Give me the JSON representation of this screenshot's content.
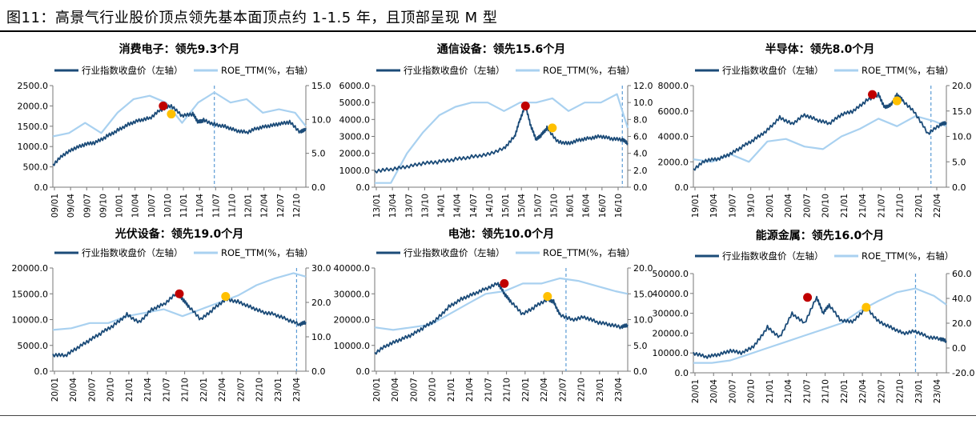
{
  "figure_title": "图11：高景气行业股价顶点领先基本面顶点约 1-1.5 年，且顶部呈现 M 型",
  "legend": {
    "price": "行业指数收盘价（左轴）",
    "roe": "ROE_TTM(%，右轴）"
  },
  "colors": {
    "price": "#1b4b78",
    "roe": "#a9d1f0",
    "peak_price": "#c00000",
    "peak_roe": "#ffc000",
    "vline": "#5b9bd5"
  },
  "chart_data": [
    {
      "type": "line",
      "title": "消费电子：领先9.3个月",
      "x_ticks": [
        "09/01",
        "09/04",
        "09/07",
        "09/10",
        "10/01",
        "10/04",
        "10/07",
        "10/10",
        "11/01",
        "11/04",
        "11/07",
        "11/10",
        "12/01",
        "12/04",
        "12/07",
        "12/10"
      ],
      "x_range": [
        0,
        47
      ],
      "y_left": {
        "range": [
          0,
          2500
        ],
        "ticks": [
          "0.0",
          "500.0",
          "1000.0",
          "1500.0",
          "2000.0",
          "2500.0"
        ]
      },
      "y_right": {
        "range": [
          0,
          15
        ],
        "ticks": [
          "0.0",
          "5.0",
          "10.0",
          "15.0"
        ]
      },
      "series": [
        {
          "name": "行业指数收盘价（左轴）",
          "x": [
            0,
            2,
            4,
            6,
            8,
            10,
            12,
            14,
            16,
            18,
            20,
            22,
            24,
            26,
            27,
            28,
            30,
            32,
            34,
            36,
            38,
            40,
            42,
            44,
            46,
            47
          ],
          "values": [
            550,
            800,
            950,
            1050,
            1100,
            1250,
            1400,
            1550,
            1650,
            1700,
            1900,
            2000,
            1750,
            1800,
            1600,
            1650,
            1550,
            1500,
            1400,
            1350,
            1450,
            1500,
            1550,
            1600,
            1350,
            1450
          ]
        },
        {
          "name": "ROE_TTM(%，右轴）",
          "x": [
            0,
            3,
            6,
            9,
            12,
            15,
            18,
            21,
            24,
            27,
            30,
            33,
            36,
            39,
            42,
            45,
            47
          ],
          "values": [
            7.5,
            8.0,
            9.5,
            8.0,
            11.0,
            13.0,
            13.5,
            12.5,
            9.5,
            12.5,
            14.0,
            12.5,
            13.0,
            11.0,
            11.5,
            11.0,
            9.0
          ]
        }
      ],
      "peak_price": {
        "x": 20.5,
        "y": 2000
      },
      "peak_roe": {
        "x": 22,
        "y": 1800
      },
      "vline_x": 30
    },
    {
      "type": "line",
      "title": "通信设备：领先15.6个月",
      "x_ticks": [
        "13/01",
        "13/04",
        "13/07",
        "13/10",
        "14/01",
        "14/04",
        "14/07",
        "14/10",
        "15/01",
        "15/04",
        "15/07",
        "15/10",
        "16/01",
        "16/04",
        "16/07",
        "16/10"
      ],
      "x_range": [
        0,
        47
      ],
      "y_left": {
        "range": [
          0,
          6000
        ],
        "ticks": [
          "0.0",
          "1000.0",
          "2000.0",
          "3000.0",
          "4000.0",
          "5000.0",
          "6000.0"
        ]
      },
      "y_right": {
        "range": [
          0,
          12
        ],
        "ticks": [
          "0.0",
          "2.0",
          "4.0",
          "6.0",
          "8.0",
          "10.0",
          "12.0"
        ]
      },
      "series": [
        {
          "name": "行业指数收盘价（左轴）",
          "x": [
            0,
            3,
            6,
            9,
            12,
            15,
            18,
            21,
            24,
            26,
            27,
            28,
            29,
            30,
            31,
            32,
            34,
            36,
            38,
            40,
            42,
            44,
            46,
            47
          ],
          "values": [
            950,
            1050,
            1200,
            1400,
            1500,
            1650,
            1800,
            1950,
            2300,
            3000,
            4000,
            4800,
            3600,
            2800,
            3100,
            3500,
            2700,
            2600,
            2800,
            2900,
            3000,
            2850,
            2800,
            2600
          ]
        },
        {
          "name": "ROE_TTM(%，右轴）",
          "x": [
            0,
            3,
            6,
            9,
            12,
            15,
            18,
            21,
            24,
            27,
            30,
            33,
            36,
            39,
            42,
            45,
            47
          ],
          "values": [
            0.5,
            0.5,
            4.0,
            6.5,
            8.5,
            9.5,
            10.0,
            10.0,
            9.0,
            10.0,
            10.0,
            10.5,
            9.0,
            10.0,
            10.0,
            11.0,
            7.0
          ]
        }
      ],
      "peak_price": {
        "x": 28,
        "y": 4800
      },
      "peak_roe": {
        "x": 33,
        "y": 3500
      },
      "vline_x": 46
    },
    {
      "type": "line",
      "title": "半导体：领先8.0个月",
      "x_ticks": [
        "19/01",
        "19/04",
        "19/07",
        "19/10",
        "20/01",
        "20/04",
        "20/07",
        "20/10",
        "21/01",
        "21/04",
        "21/07",
        "21/10",
        "22/01",
        "22/04"
      ],
      "x_range": [
        0,
        41
      ],
      "y_left": {
        "range": [
          0,
          8000
        ],
        "ticks": [
          "0.0",
          "2000.0",
          "4000.0",
          "6000.0",
          "8000.0"
        ]
      },
      "y_right": {
        "range": [
          0,
          20
        ],
        "ticks": [
          "0.0",
          "5.0",
          "10.0",
          "15.0",
          "20.0"
        ]
      },
      "series": [
        {
          "name": "行业指数收盘价（左轴）",
          "x": [
            0,
            2,
            4,
            6,
            8,
            10,
            12,
            14,
            16,
            18,
            20,
            22,
            24,
            26,
            28,
            30,
            31,
            32,
            33,
            34,
            36,
            38,
            40,
            41
          ],
          "values": [
            1400,
            2100,
            2200,
            2600,
            3200,
            3800,
            4500,
            5500,
            5000,
            5700,
            5300,
            5000,
            5700,
            6000,
            6800,
            7300,
            6300,
            6500,
            7300,
            6800,
            5800,
            4200,
            4900,
            5100
          ]
        },
        {
          "name": "ROE_TTM(%，右轴）",
          "x": [
            0,
            3,
            6,
            9,
            12,
            15,
            18,
            21,
            24,
            27,
            30,
            33,
            36,
            39,
            41
          ],
          "values": [
            5.5,
            5.0,
            6.5,
            5.0,
            9.0,
            9.5,
            8.0,
            7.5,
            10.0,
            11.5,
            13.5,
            12.0,
            14.0,
            13.0,
            12.0
          ]
        }
      ],
      "peak_price": {
        "x": 29,
        "y": 7300
      },
      "peak_roe": {
        "x": 33,
        "y": 6800
      },
      "vline_x": 38.5
    },
    {
      "type": "line",
      "title": "光伏设备：领先19.0个月",
      "x_ticks": [
        "20/01",
        "20/04",
        "20/07",
        "20/10",
        "21/01",
        "21/04",
        "21/07",
        "21/10",
        "22/01",
        "22/04",
        "22/07",
        "22/10",
        "23/01",
        "23/04"
      ],
      "x_range": [
        0,
        41
      ],
      "y_left": {
        "range": [
          0,
          20000
        ],
        "ticks": [
          "0.0",
          "5000.0",
          "10000.0",
          "15000.0",
          "20000.0"
        ]
      },
      "y_right": {
        "range": [
          0,
          30
        ],
        "ticks": [
          "0.0",
          "10.0",
          "20.0",
          "30.0"
        ]
      },
      "series": [
        {
          "name": "行业指数收盘价（左轴）",
          "x": [
            0,
            2,
            4,
            6,
            8,
            10,
            12,
            14,
            16,
            18,
            20,
            21,
            22,
            24,
            26,
            28,
            30,
            32,
            34,
            36,
            38,
            40,
            41
          ],
          "values": [
            3200,
            3000,
            4500,
            6000,
            7500,
            9000,
            11000,
            9500,
            12000,
            13000,
            15000,
            14000,
            12500,
            10000,
            12000,
            14000,
            13500,
            12500,
            11500,
            11000,
            10000,
            9000,
            9500
          ]
        },
        {
          "name": "ROE_TTM(%，右轴）",
          "x": [
            0,
            3,
            6,
            9,
            12,
            15,
            18,
            21,
            24,
            27,
            30,
            33,
            36,
            39,
            41
          ],
          "values": [
            12.0,
            12.5,
            14.0,
            14.0,
            16.0,
            17.0,
            18.0,
            16.0,
            18.0,
            20.0,
            22.0,
            25.0,
            27.0,
            28.5,
            27.5
          ]
        }
      ],
      "peak_price": {
        "x": 20.5,
        "y": 15000
      },
      "peak_roe": {
        "x": 28,
        "y": 14500
      },
      "vline_x": 39.5
    },
    {
      "type": "line",
      "title": "电池：领先10.0个月",
      "x_ticks": [
        "20/01",
        "20/04",
        "20/07",
        "20/10",
        "21/01",
        "21/04",
        "21/07",
        "21/10",
        "22/01",
        "22/04",
        "22/07",
        "22/10",
        "23/01",
        "23/04"
      ],
      "x_range": [
        0,
        41
      ],
      "y_left": {
        "range": [
          0,
          40000
        ],
        "ticks": [
          "0.0",
          "10000.0",
          "20000.0",
          "30000.0",
          "40000.0"
        ]
      },
      "y_right": {
        "range": [
          0,
          20
        ],
        "ticks": [
          "0.0",
          "5.0",
          "10.0",
          "15.0",
          "20.0"
        ]
      },
      "series": [
        {
          "name": "行业指数收盘价（左轴）",
          "x": [
            0,
            2,
            4,
            6,
            8,
            10,
            12,
            14,
            16,
            18,
            20,
            21,
            22,
            24,
            26,
            28,
            29,
            30,
            32,
            34,
            36,
            38,
            40,
            41
          ],
          "values": [
            7000,
            10000,
            12000,
            14000,
            17000,
            20000,
            25000,
            28000,
            30000,
            32000,
            34000,
            30000,
            27000,
            22000,
            25000,
            28000,
            27000,
            22000,
            20000,
            21000,
            19000,
            18000,
            17000,
            18000
          ]
        },
        {
          "name": "ROE_TTM(%，右轴）",
          "x": [
            0,
            3,
            6,
            9,
            12,
            15,
            18,
            21,
            24,
            27,
            30,
            33,
            36,
            39,
            41
          ],
          "values": [
            8.5,
            8.0,
            8.5,
            9.0,
            11.0,
            13.0,
            15.0,
            15.5,
            17.0,
            17.0,
            18.0,
            17.5,
            16.5,
            15.5,
            15.0
          ]
        }
      ],
      "peak_price": {
        "x": 21,
        "y": 34000
      },
      "peak_roe": {
        "x": 28,
        "y": 29000
      },
      "vline_x": 31
    },
    {
      "type": "line",
      "title": "能源金属：领先16.0个月",
      "x_ticks": [
        "20/01",
        "20/04",
        "20/07",
        "20/10",
        "21/01",
        "21/04",
        "21/07",
        "21/10",
        "22/01",
        "22/04",
        "22/07",
        "22/10",
        "23/01",
        "23/04"
      ],
      "x_range": [
        0,
        41
      ],
      "y_left": {
        "range": [
          0,
          50000
        ],
        "ticks": [
          "0.0",
          "10000.0",
          "20000.0",
          "30000.0",
          "40000.0",
          "50000.0"
        ]
      },
      "y_right": {
        "range": [
          -20,
          60
        ],
        "ticks": [
          "-20.0",
          "0.0",
          "20.0",
          "40.0",
          "60.0"
        ]
      },
      "series": [
        {
          "name": "行业指数收盘价（左轴）",
          "x": [
            0,
            2,
            4,
            6,
            8,
            10,
            12,
            14,
            16,
            18,
            20,
            21,
            22,
            24,
            26,
            28,
            30,
            32,
            34,
            36,
            38,
            40,
            41
          ],
          "values": [
            10000,
            8000,
            9000,
            11000,
            10000,
            14000,
            23000,
            18000,
            30000,
            25000,
            38000,
            30000,
            34000,
            26000,
            26000,
            33000,
            26000,
            23000,
            20000,
            21000,
            18000,
            17000,
            16000
          ]
        },
        {
          "name": "ROE_TTM(%，右轴）",
          "x": [
            0,
            3,
            6,
            9,
            12,
            15,
            18,
            21,
            24,
            27,
            30,
            33,
            36,
            39,
            41
          ],
          "values": [
            -12,
            -12,
            -10,
            -5,
            0,
            5,
            10,
            15,
            20,
            30,
            38,
            45,
            48,
            42,
            35
          ]
        }
      ],
      "peak_price": {
        "x": 18.5,
        "y": 38000
      },
      "peak_roe": {
        "x": 28,
        "y": 33000
      },
      "vline_x": 36
    }
  ]
}
